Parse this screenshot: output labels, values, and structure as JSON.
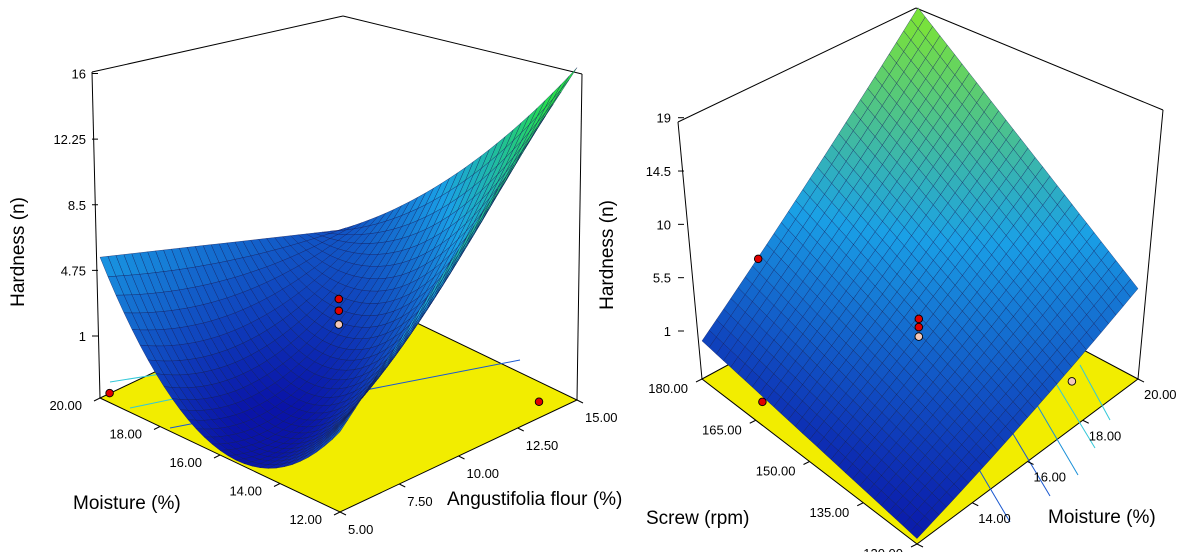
{
  "chart_data": [
    {
      "type": "surface",
      "zlabel": "Hardness (n)",
      "xlabel": "Moisture (%)",
      "ylabel": "Angustifolia flour (%)",
      "x_ticks": [
        "20.00",
        "18.00",
        "16.00",
        "14.00",
        "12.00"
      ],
      "y_ticks": [
        "5.00",
        "7.50",
        "10.00",
        "12.50",
        "15.00"
      ],
      "z_ticks": [
        "1",
        "4.75",
        "8.5",
        "12.25",
        "16"
      ],
      "xlim": [
        12,
        20
      ],
      "ylim": [
        5,
        15
      ],
      "zlim": [
        1,
        16
      ],
      "surface_corners": {
        "moisture_20_flour_5": 1.0,
        "moisture_12_flour_5": 8.2,
        "moisture_12_flour_15": 18.0,
        "moisture_20_flour_15": 3.8,
        "minimum": 0.3
      },
      "design_points": [
        {
          "moisture": 20,
          "flour": 5,
          "hardness": 1.0
        },
        {
          "moisture": 16,
          "flour": 10,
          "hardness": 4.8
        },
        {
          "moisture": 16,
          "flour": 10,
          "hardness": 5.3
        },
        {
          "moisture": 16,
          "flour": 10,
          "hardness": 5.8
        },
        {
          "moisture": 12,
          "flour": 15,
          "hardness": 1.3
        }
      ],
      "colors": {
        "floor": "#f2ed00",
        "low": "#0a14a8",
        "mid": "#1aa0e6",
        "high": "#27e048",
        "point": "#e00000",
        "point_light": "#f4c8b8"
      }
    },
    {
      "type": "surface",
      "zlabel": "Hardness (n)",
      "xlabel": "Screw (rpm)",
      "ylabel": "Moisture (%)",
      "x_ticks": [
        "180.00",
        "165.00",
        "150.00",
        "135.00",
        "120.00"
      ],
      "y_ticks": [
        "12.00",
        "14.00",
        "16.00",
        "18.00",
        "20.00"
      ],
      "z_ticks": [
        "1",
        "5.5",
        "10",
        "14.5",
        "19"
      ],
      "xlim": [
        120,
        180
      ],
      "ylim": [
        12,
        20
      ],
      "zlim": [
        1,
        19
      ],
      "surface_corners": {
        "screw_180_moisture_12": 3.8,
        "screw_120_moisture_12": 1.4,
        "screw_120_moisture_20": 7.5,
        "screw_180_moisture_20": 18.5
      },
      "design_points": [
        {
          "screw": 165,
          "moisture": 14,
          "hardness": 9.5
        },
        {
          "screw": 150,
          "moisture": 16,
          "hardness": 5.2
        },
        {
          "screw": 150,
          "moisture": 16,
          "hardness": 5.8
        },
        {
          "screw": 150,
          "moisture": 16,
          "hardness": 6.3
        },
        {
          "screw": 170,
          "moisture": 13,
          "hardness": 1.0
        },
        {
          "screw": 130,
          "moisture": 19,
          "hardness": 1.8
        }
      ],
      "colors": {
        "floor": "#f2ed00",
        "low": "#0a14a8",
        "mid": "#1aa0e6",
        "high": "#7ae23a",
        "point": "#e00000",
        "point_light": "#f4c8b8"
      }
    }
  ]
}
